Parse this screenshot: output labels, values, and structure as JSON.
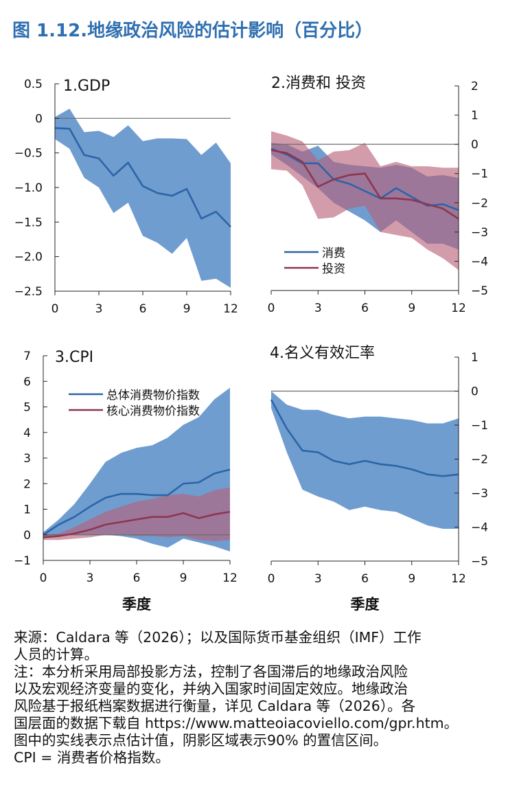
{
  "title": "图 1.12.地缘政治风险的估计影响（百分比）",
  "xlabel": "季度",
  "notes": [
    "来源：Caldara 等（2026）；以及国际货币基金组织（IMF）工作",
    "人员的计算。",
    "注：本分析采用局部投影方法，控制了各国滞后的地缘政治风险",
    "以及宏观经济变量的变化，并纳入国家时间固定效应。地缘政治",
    "风险基于报纸档案数据进行衡量，详见 Caldara 等（2026）。各",
    "国层面的数据下载自 https://www.matteoiacoviello.com/gpr.htm。",
    "图中的实线表示点估计值，阴影区域表示90% 的置信区间。",
    "CPI = 消费者价格指数。"
  ],
  "colors": {
    "blue_line": "#2c64a6",
    "blue_band": "#4f87c6",
    "red_line": "#8e3550",
    "red_band": "#b85f78",
    "title": "#2f6fb0"
  },
  "chart_data": [
    {
      "type": "line",
      "title": "1.GDP",
      "x": [
        0,
        1,
        2,
        3,
        4,
        5,
        6,
        7,
        8,
        9,
        10,
        11,
        12
      ],
      "xticks": [
        0,
        3,
        6,
        9,
        12
      ],
      "ylim": [
        -2.5,
        0.5
      ],
      "yticks": [
        "0.5",
        "0",
        "-0.5",
        "-1.0",
        "-1.5",
        "-2.0",
        "-2.5"
      ],
      "y_axis_side": "left",
      "series": [
        {
          "color": "blue",
          "values": [
            -0.14,
            -0.15,
            -0.53,
            -0.58,
            -0.83,
            -0.64,
            -0.98,
            -1.08,
            -1.12,
            -1.02,
            -1.45,
            -1.35,
            -1.57
          ],
          "upper": [
            0.02,
            0.14,
            -0.2,
            -0.18,
            -0.27,
            -0.1,
            -0.33,
            -0.29,
            -0.29,
            -0.3,
            -0.53,
            -0.35,
            -0.65
          ],
          "lower": [
            -0.3,
            -0.44,
            -0.86,
            -1.0,
            -1.37,
            -1.22,
            -1.7,
            -1.8,
            -1.96,
            -1.73,
            -2.35,
            -2.32,
            -2.45
          ]
        }
      ]
    },
    {
      "type": "line",
      "title": "2.消费和 投资",
      "x": [
        0,
        1,
        2,
        3,
        4,
        5,
        6,
        7,
        8,
        9,
        10,
        11,
        12
      ],
      "xticks": [
        0,
        3,
        6,
        9,
        12
      ],
      "ylim": [
        -5,
        2
      ],
      "yticks": [
        "2",
        "1",
        "0",
        "-1",
        "-2",
        "-3",
        "-4",
        "-5"
      ],
      "y_axis_side": "right",
      "legend": {
        "position": "lower-center"
      },
      "series": [
        {
          "name": "消费",
          "color": "blue",
          "values": [
            -0.15,
            -0.35,
            -0.65,
            -0.65,
            -1.2,
            -1.35,
            -1.6,
            -1.85,
            -1.5,
            -1.8,
            -2.1,
            -2.05,
            -2.25
          ],
          "upper": [
            0.05,
            0.0,
            -0.25,
            -0.05,
            -0.6,
            -0.7,
            -0.75,
            -0.8,
            -0.7,
            -0.8,
            -1.1,
            -1.05,
            -1.15
          ],
          "lower": [
            -0.35,
            -0.7,
            -1.1,
            -1.5,
            -2.0,
            -2.3,
            -2.6,
            -3.0,
            -2.6,
            -3.0,
            -3.4,
            -3.4,
            -3.6
          ]
        },
        {
          "name": "投资",
          "color": "red",
          "values": [
            -0.2,
            -0.3,
            -0.6,
            -1.45,
            -1.2,
            -1.05,
            -1.0,
            -1.85,
            -1.85,
            -1.9,
            -2.05,
            -2.2,
            -2.55
          ],
          "upper": [
            0.45,
            0.3,
            0.1,
            -0.55,
            -0.25,
            -0.2,
            0.05,
            -0.75,
            -0.6,
            -0.75,
            -0.75,
            -0.8,
            -0.8
          ],
          "lower": [
            -0.85,
            -0.9,
            -1.4,
            -2.55,
            -2.5,
            -2.2,
            -2.1,
            -3.0,
            -3.1,
            -3.2,
            -3.6,
            -3.9,
            -4.3
          ]
        }
      ]
    },
    {
      "type": "line",
      "title": "3.CPI",
      "x": [
        0,
        1,
        2,
        3,
        4,
        5,
        6,
        7,
        8,
        9,
        10,
        11,
        12
      ],
      "xticks": [
        0,
        3,
        6,
        9,
        12
      ],
      "ylim": [
        -1,
        7
      ],
      "yticks": [
        "7",
        "6",
        "5",
        "4",
        "3",
        "2",
        "1",
        "0",
        "-1"
      ],
      "y_axis_side": "left",
      "legend": {
        "position": "upper-left"
      },
      "series": [
        {
          "name": "总体消费物价指数",
          "color": "blue",
          "values": [
            0.0,
            0.4,
            0.7,
            1.1,
            1.45,
            1.6,
            1.6,
            1.55,
            1.55,
            2.0,
            2.05,
            2.4,
            2.55
          ],
          "upper": [
            0.1,
            0.6,
            1.2,
            2.0,
            2.85,
            3.2,
            3.4,
            3.5,
            3.8,
            4.3,
            4.6,
            5.3,
            5.75
          ],
          "lower": [
            -0.1,
            -0.05,
            0.0,
            0.0,
            0.0,
            -0.05,
            -0.15,
            -0.35,
            -0.5,
            -0.15,
            -0.3,
            -0.45,
            -0.65
          ]
        },
        {
          "name": "核心消费物价指数",
          "color": "red",
          "values": [
            -0.1,
            -0.05,
            0.05,
            0.2,
            0.4,
            0.5,
            0.6,
            0.7,
            0.7,
            0.85,
            0.65,
            0.8,
            0.9
          ],
          "upper": [
            0.0,
            0.05,
            0.3,
            0.6,
            0.9,
            1.1,
            1.3,
            1.4,
            1.55,
            1.6,
            1.5,
            1.75,
            1.85
          ],
          "lower": [
            -0.2,
            -0.2,
            -0.15,
            -0.1,
            0.0,
            0.0,
            -0.05,
            -0.05,
            -0.1,
            -0.05,
            -0.2,
            -0.25,
            -0.2
          ]
        }
      ]
    },
    {
      "type": "line",
      "title": "4.名义有效汇率",
      "x": [
        0,
        1,
        2,
        3,
        4,
        5,
        6,
        7,
        8,
        9,
        10,
        11,
        12
      ],
      "xticks": [
        0,
        3,
        6,
        9,
        12
      ],
      "ylim": [
        -5,
        1
      ],
      "yticks": [
        "1",
        "0",
        "-1",
        "-2",
        "-3",
        "-4",
        "-5"
      ],
      "y_axis_side": "right",
      "series": [
        {
          "color": "blue",
          "values": [
            -0.25,
            -1.1,
            -1.75,
            -1.8,
            -2.05,
            -2.15,
            -2.05,
            -2.15,
            -2.2,
            -2.3,
            -2.45,
            -2.5,
            -2.45
          ],
          "upper": [
            0.0,
            -0.4,
            -0.55,
            -0.55,
            -0.7,
            -0.8,
            -0.75,
            -0.75,
            -0.8,
            -0.85,
            -0.95,
            -0.95,
            -0.8
          ],
          "lower": [
            -0.5,
            -1.8,
            -2.9,
            -3.1,
            -3.25,
            -3.5,
            -3.4,
            -3.5,
            -3.55,
            -3.75,
            -3.95,
            -4.05,
            -4.05
          ]
        }
      ]
    }
  ]
}
